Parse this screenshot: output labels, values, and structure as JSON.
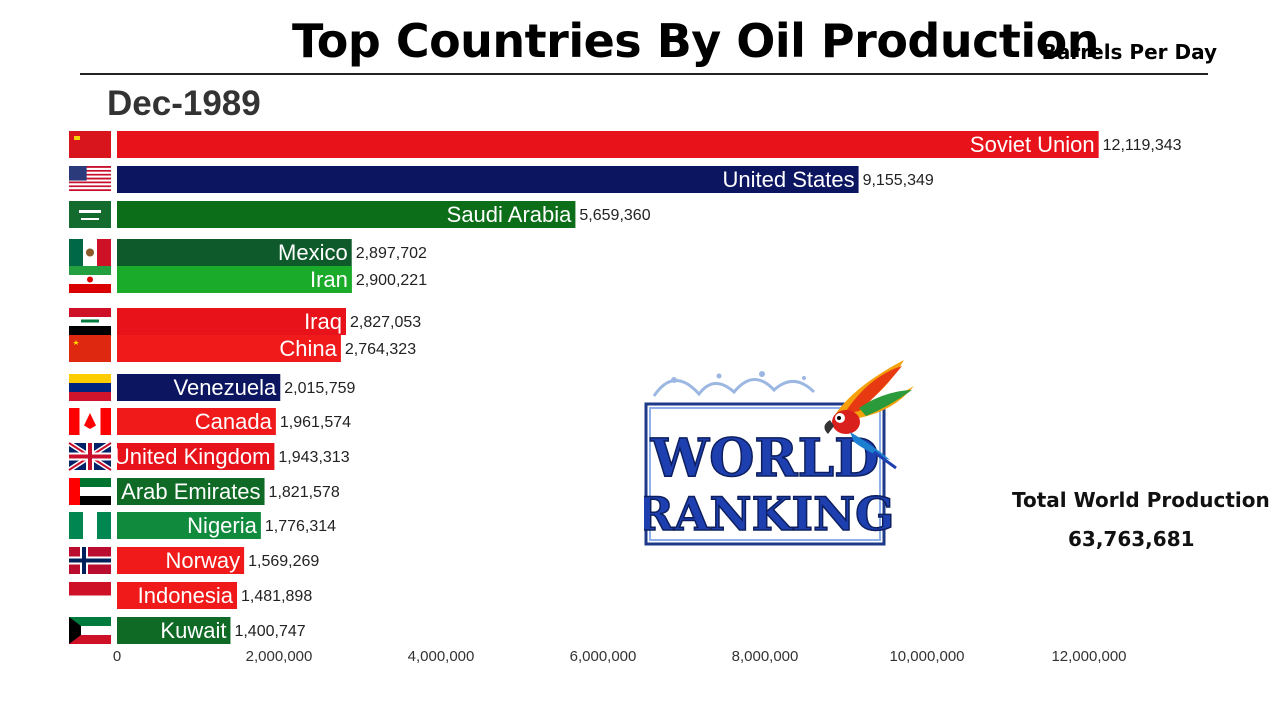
{
  "header": {
    "title": "Top Countries By Oil Production",
    "unit": "Barrels Per Day",
    "date": "Dec-1989"
  },
  "total": {
    "label": "Total World Production",
    "value": "63,763,681"
  },
  "logo": {
    "line1": "WORLD",
    "line2": "RANKING"
  },
  "chart_data": {
    "type": "bar",
    "orientation": "horizontal",
    "xlim": [
      0,
      12500000
    ],
    "x_ticks": [
      0,
      2000000,
      4000000,
      6000000,
      8000000,
      10000000,
      12000000
    ],
    "x_tick_labels": [
      "0",
      "2,000,000",
      "4,000,000",
      "6,000,000",
      "8,000,000",
      "10,000,000",
      "12,000,000"
    ],
    "bars": [
      {
        "country": "Soviet Union",
        "value": 12119343,
        "value_label": "12,119,343",
        "color": "#e8121b",
        "flag": "soviet-flag"
      },
      {
        "country": "United States",
        "value": 9155349,
        "value_label": "9,155,349",
        "color": "#0c1660",
        "flag": "usa-flag"
      },
      {
        "country": "Saudi Arabia",
        "value": 5659360,
        "value_label": "5,659,360",
        "color": "#0d6e1a",
        "flag": "saudi-flag"
      },
      {
        "country": "Mexico",
        "value": 2897702,
        "value_label": "2,897,702",
        "color": "#0f5a2a",
        "flag": "mexico-flag"
      },
      {
        "country": "Iran",
        "value": 2900221,
        "value_label": "2,900,221",
        "color": "#1bab2b",
        "flag": "iran-flag"
      },
      {
        "country": "Iraq",
        "value": 2827053,
        "value_label": "2,827,053",
        "color": "#e8121b",
        "flag": "iraq-flag"
      },
      {
        "country": "China",
        "value": 2764323,
        "value_label": "2,764,323",
        "color": "#f01a1a",
        "flag": "china-flag"
      },
      {
        "country": "Venezuela",
        "value": 2015759,
        "value_label": "2,015,759",
        "color": "#0c1660",
        "flag": "venezuela-flag"
      },
      {
        "country": "Canada",
        "value": 1961574,
        "value_label": "1,961,574",
        "color": "#f01a1a",
        "flag": "canada-flag"
      },
      {
        "country": "United Kingdom",
        "value": 1943313,
        "value_label": "1,943,313",
        "color": "#e8121b",
        "flag": "uk-flag"
      },
      {
        "country": "United Arab Emirates",
        "value": 1821578,
        "value_label": "1,821,578",
        "color": "#0f6a25",
        "flag": "uae-flag"
      },
      {
        "country": "Nigeria",
        "value": 1776314,
        "value_label": "1,776,314",
        "color": "#108a3c",
        "flag": "nigeria-flag"
      },
      {
        "country": "Norway",
        "value": 1569269,
        "value_label": "1,569,269",
        "color": "#f01a1a",
        "flag": "norway-flag"
      },
      {
        "country": "Indonesia",
        "value": 1481898,
        "value_label": "1,481,898",
        "color": "#f01a1a",
        "flag": "indonesia-flag"
      },
      {
        "country": "Kuwait",
        "value": 1400747,
        "value_label": "1,400,747",
        "color": "#0f6a25",
        "flag": "kuwait-flag"
      }
    ]
  }
}
